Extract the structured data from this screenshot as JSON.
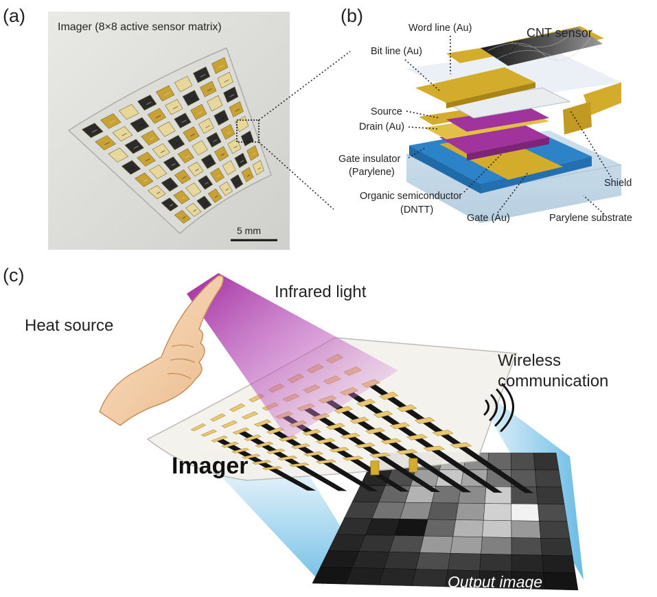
{
  "panel_a": {
    "letter": "(a)",
    "title": "Imager (8×8 active sensor matrix)",
    "scale_bar": "5 mm",
    "rows": 8,
    "cols": 8
  },
  "panel_b": {
    "letter": "(b)",
    "labels": {
      "word_line": "Word line (Au)",
      "cnt_sensor": "CNT sensor",
      "bit_line": "Bit line (Au)",
      "source": "Source",
      "drain": "Drain (Au)",
      "gate_insulator_1": "Gate insulator",
      "gate_insulator_2": "(Parylene)",
      "organic_semi_1": "Organic semiconductor",
      "organic_semi_2": "(DNTT)",
      "gate": "Gate (Au)",
      "shield": "Shield",
      "substrate": "Parylene substrate"
    },
    "colors": {
      "gold": "#d4ac2c",
      "blue": "#2d83c8",
      "magenta": "#a0349c",
      "cnt": "#1a1a1a",
      "substrate": "#c7dbe9"
    }
  },
  "panel_c": {
    "letter": "(c)",
    "heat_source": "Heat source",
    "infrared_light": "Infrared light",
    "wireless_1": "Wireless",
    "wireless_2": "communication",
    "imager": "Imager",
    "output_image": "Output image",
    "output_pixels": [
      [
        0.12,
        0.25,
        0.45,
        0.7,
        0.55,
        0.4,
        0.3,
        0.2
      ],
      [
        0.15,
        0.3,
        0.62,
        0.78,
        0.65,
        0.45,
        0.35,
        0.25
      ],
      [
        0.2,
        0.4,
        0.7,
        0.45,
        0.55,
        0.8,
        0.3,
        0.22
      ],
      [
        0.25,
        0.45,
        0.55,
        0.35,
        0.6,
        0.82,
        0.95,
        0.3
      ],
      [
        0.18,
        0.12,
        0.08,
        0.4,
        0.7,
        0.78,
        0.6,
        0.25
      ],
      [
        0.15,
        0.2,
        0.3,
        0.6,
        0.62,
        0.5,
        0.3,
        0.2
      ],
      [
        0.1,
        0.15,
        0.2,
        0.3,
        0.25,
        0.2,
        0.15,
        0.12
      ],
      [
        0.08,
        0.12,
        0.15,
        0.18,
        0.15,
        0.12,
        0.1,
        0.08
      ]
    ]
  }
}
